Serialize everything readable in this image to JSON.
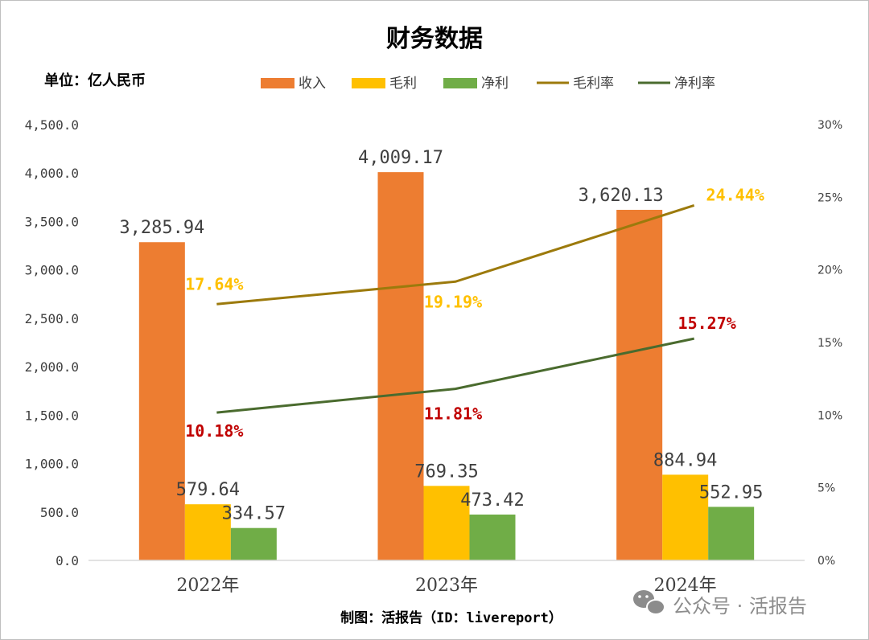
{
  "chart_data": {
    "type": "bar",
    "title": "财务数据",
    "unit_label": "单位：亿人民币",
    "categories": [
      "2022年",
      "2023年",
      "2024年"
    ],
    "series": [
      {
        "name": "收入",
        "kind": "bar",
        "color": "#ED7D31",
        "values": [
          3285.94,
          4009.17,
          3620.13
        ],
        "labels": [
          "3,285.94",
          "4,009.17",
          "3,620.13"
        ]
      },
      {
        "name": "毛利",
        "kind": "bar",
        "color": "#FFC000",
        "values": [
          579.64,
          769.35,
          884.94
        ],
        "labels": [
          "579.64",
          "769.35",
          "884.94"
        ]
      },
      {
        "name": "净利",
        "kind": "bar",
        "color": "#70AD47",
        "values": [
          334.57,
          473.42,
          552.95
        ],
        "labels": [
          "334.57",
          "473.42",
          "552.95"
        ]
      },
      {
        "name": "毛利率",
        "kind": "line",
        "axis": "right",
        "color": "#9C7A0C",
        "label_color": "#FFC000",
        "values": [
          17.64,
          19.19,
          24.44
        ],
        "labels": [
          "17.64%",
          "19.19%",
          "24.44%"
        ]
      },
      {
        "name": "净利率",
        "kind": "line",
        "axis": "right",
        "color": "#4A6B2E",
        "label_color": "#C00000",
        "values": [
          10.18,
          11.81,
          15.27
        ],
        "labels": [
          "10.18%",
          "11.81%",
          "15.27%"
        ]
      }
    ],
    "ylim": [
      0,
      4500
    ],
    "yticks": [
      0,
      500,
      1000,
      1500,
      2000,
      2500,
      3000,
      3500,
      4000,
      4500
    ],
    "ytick_labels": [
      "0.0",
      "500.0",
      "1,000.0",
      "1,500.0",
      "2,000.0",
      "2,500.0",
      "3,000.0",
      "3,500.0",
      "4,000.0",
      "4,500.0"
    ],
    "y2lim": [
      0,
      30
    ],
    "y2ticks": [
      0,
      5,
      10,
      15,
      20,
      25,
      30
    ],
    "y2tick_labels": [
      "0%",
      "5%",
      "10%",
      "15%",
      "20%",
      "25%",
      "30%"
    ],
    "legend_position": "top",
    "grid": false
  },
  "footer": {
    "source": "制图：活报告（ID：livereport）",
    "watermark": "公众号 · 活报告"
  }
}
